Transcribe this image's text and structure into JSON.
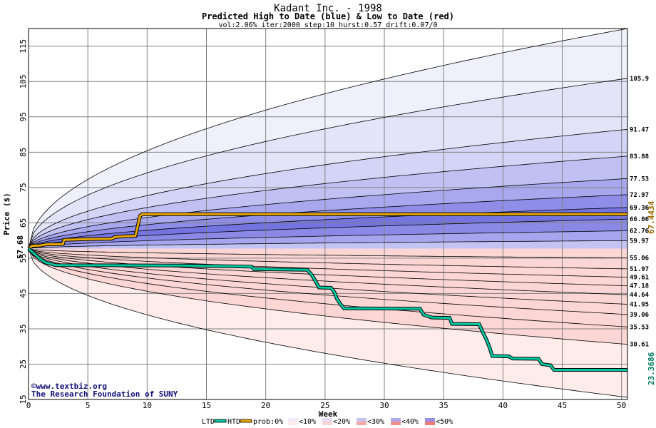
{
  "chart_data": {
    "type": "area",
    "title": "Kadant Inc. - 1998",
    "subtitle": "Predicted High to Date (blue) &  Low to Date (red)",
    "params": "vol:2.06% iter:2000 step:10 hurst:0.57 drift:0.07/0",
    "xlabel": "Week",
    "ylabel": "Price ($)",
    "xlim": [
      0,
      50.5
    ],
    "ylim": [
      15,
      120
    ],
    "x_ticks": [
      0,
      5,
      10,
      15,
      20,
      25,
      30,
      35,
      40,
      45,
      50
    ],
    "y_ticks": [
      15,
      25,
      35,
      45,
      55,
      65,
      75,
      85,
      95,
      105,
      115
    ],
    "grid": true,
    "start_price": 57.68,
    "start_label": "57.68",
    "high_band_ends": [
      105.9,
      91.47,
      83.88,
      77.53,
      72.97,
      69.36,
      66.06,
      62.76,
      59.97
    ],
    "high_band_labels": [
      "105.9",
      "91.47",
      "83.88",
      "77.53",
      "72.97",
      "69.36",
      "66.06",
      "62.76",
      "59.97"
    ],
    "low_band_ends": [
      55.06,
      51.97,
      49.61,
      47.18,
      44.64,
      41.95,
      39.06,
      35.53,
      30.61
    ],
    "low_band_labels": [
      "55.06",
      "51.97",
      "49.61",
      "47.18",
      "44.64",
      "41.95",
      "39.06",
      "35.53",
      "30.61"
    ],
    "outer_high_end": 120,
    "outer_low_end": 15.6,
    "series": [
      {
        "name": "HTD",
        "color": "#e8a800",
        "points": [
          [
            0,
            57.68
          ],
          [
            0.3,
            58.5
          ],
          [
            1,
            58.6
          ],
          [
            1.5,
            58.9
          ],
          [
            2.9,
            59.0
          ],
          [
            3.0,
            60.2
          ],
          [
            5,
            60.4
          ],
          [
            7,
            60.5
          ],
          [
            7.3,
            61.0
          ],
          [
            8,
            61.2
          ],
          [
            9,
            61.3
          ],
          [
            9.1,
            62.5
          ],
          [
            9.4,
            67.0
          ],
          [
            9.6,
            67.44
          ],
          [
            50.5,
            67.44
          ]
        ]
      },
      {
        "name": "LTD",
        "color": "#00c8a0",
        "points": [
          [
            0,
            57.68
          ],
          [
            0.4,
            56.5
          ],
          [
            0.9,
            55.0
          ],
          [
            1.4,
            53.8
          ],
          [
            2.3,
            53.0
          ],
          [
            13,
            52.9
          ],
          [
            18.8,
            52.6
          ],
          [
            19.0,
            51.9
          ],
          [
            23.5,
            51.7
          ],
          [
            23.9,
            50.2
          ],
          [
            24.2,
            48.5
          ],
          [
            24.5,
            46.7
          ],
          [
            25.5,
            46.6
          ],
          [
            25.8,
            45.3
          ],
          [
            26,
            43.5
          ],
          [
            26.3,
            42.0
          ],
          [
            26.6,
            40.8
          ],
          [
            33,
            40.7
          ],
          [
            33.3,
            39.0
          ],
          [
            34,
            38.2
          ],
          [
            35.5,
            38.1
          ],
          [
            35.7,
            36.4
          ],
          [
            38,
            36.3
          ],
          [
            38.3,
            34.0
          ],
          [
            38.6,
            32.0
          ],
          [
            38.9,
            29.5
          ],
          [
            39.1,
            27.3
          ],
          [
            40.5,
            27.2
          ],
          [
            40.8,
            26.6
          ],
          [
            43,
            26.5
          ],
          [
            43.3,
            25.0
          ],
          [
            44,
            24.7
          ],
          [
            44.3,
            23.37
          ],
          [
            50.5,
            23.37
          ]
        ]
      }
    ],
    "htd_end_label": "67.4434",
    "ltd_end_label": "23.3686",
    "legend": {
      "placement": "bottom",
      "ltd_label": "LTD",
      "htd_label": "HTD",
      "prob_label": "prob:0%",
      "buckets": [
        "<10%",
        "<20%",
        "<30%",
        "<40%",
        "<50%"
      ],
      "colors": [
        "#f0eaf8",
        "#e2dcf4",
        "#c8c4f0",
        "#b0a8ec",
        "#9a8ee6"
      ]
    },
    "watermark": "©www.textbiz.org",
    "watermark_line2": "The Research Foundation of SUNY"
  }
}
